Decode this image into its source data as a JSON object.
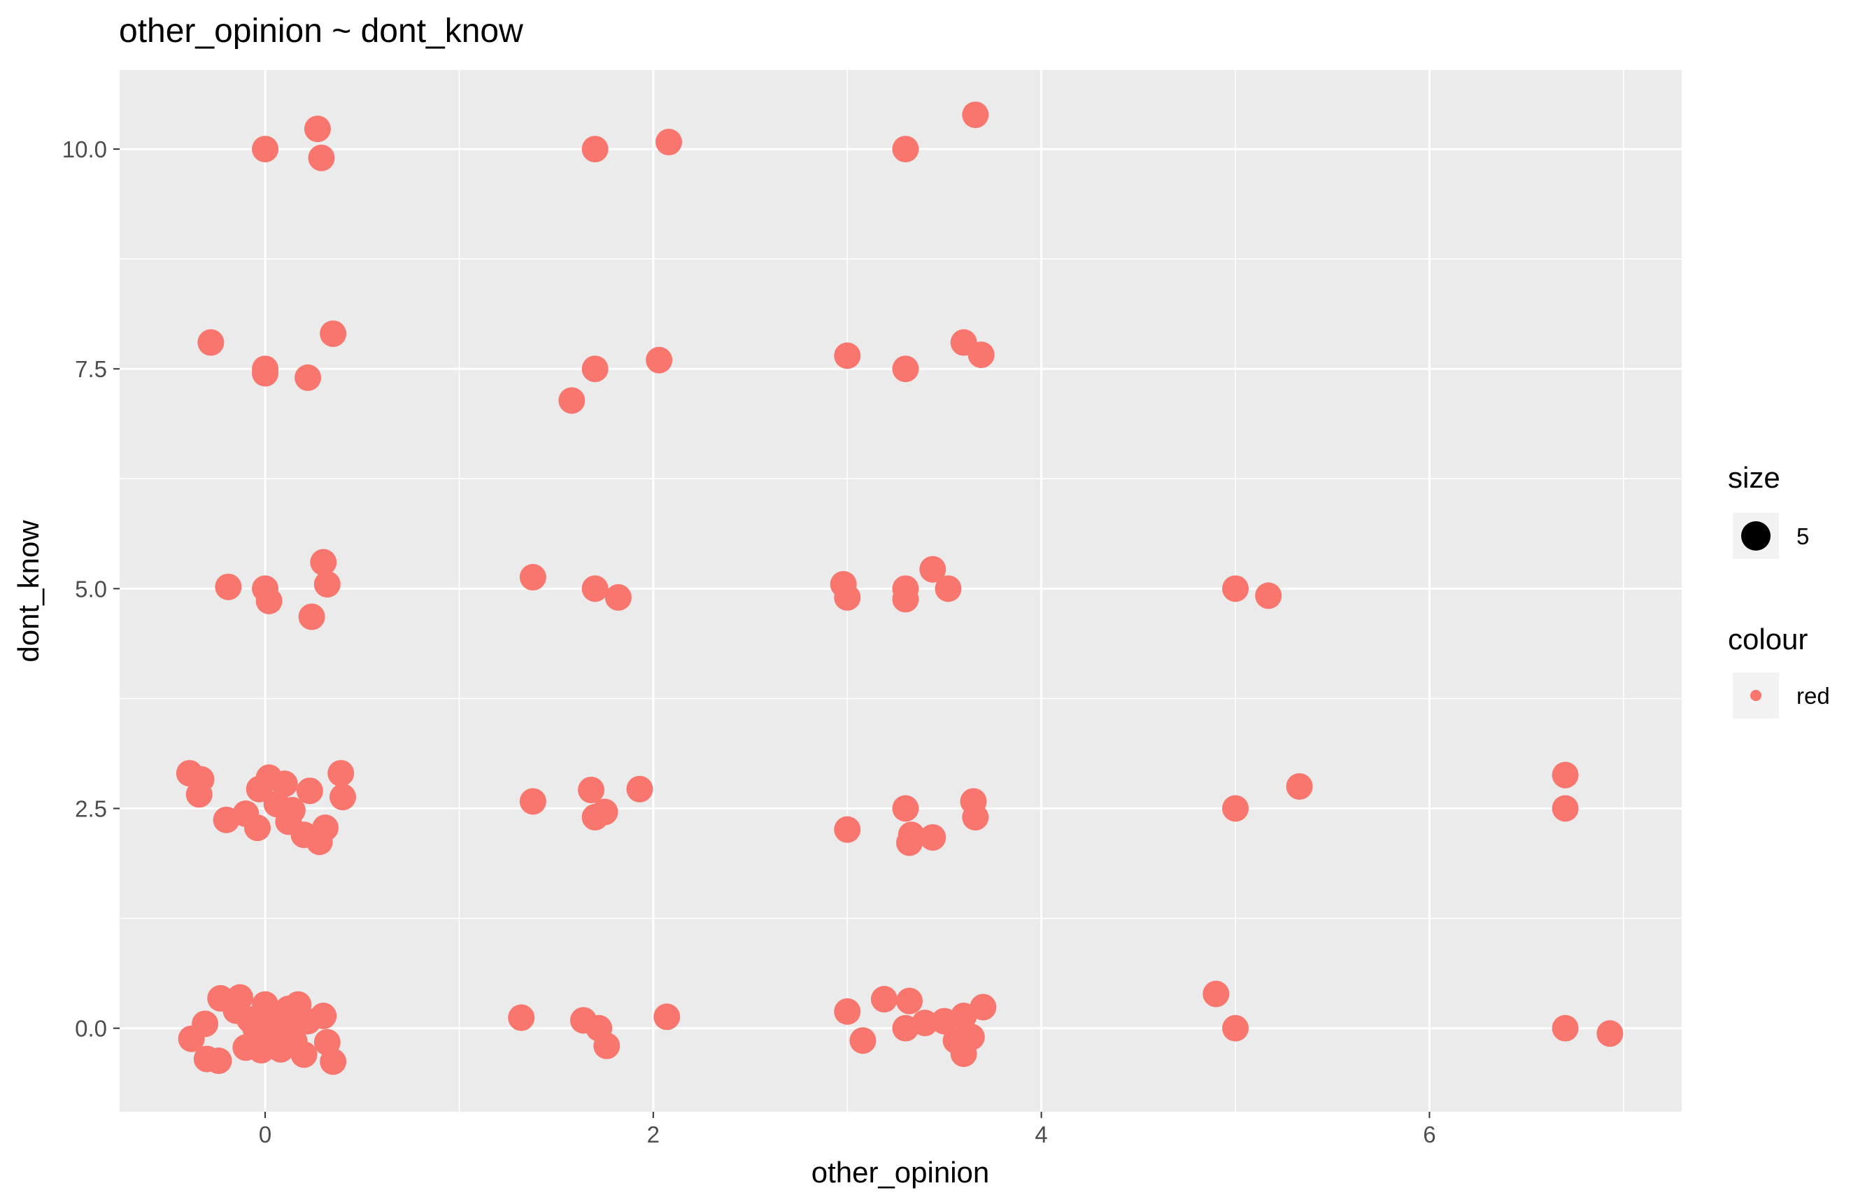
{
  "chart_data": {
    "type": "scatter",
    "title": "other_opinion ~ dont_know",
    "xlabel": "other_opinion",
    "ylabel": "dont_know",
    "xlim": [
      -0.75,
      7.3
    ],
    "ylim": [
      -0.95,
      10.9
    ],
    "x_ticks": [
      0,
      2,
      4,
      6
    ],
    "x_tick_labels": [
      "0",
      "2",
      "4",
      "6"
    ],
    "y_ticks": [
      0,
      2.5,
      5,
      7.5,
      10
    ],
    "y_tick_labels": [
      "0.0",
      "2.5",
      "5.0",
      "7.5",
      "10.0"
    ],
    "grid": true,
    "point_color": "#F8766D",
    "panel_background": "#EBEBEB",
    "legend": {
      "placement": "right",
      "groups": [
        {
          "title": "size",
          "label": "5",
          "key_color": "#000000"
        },
        {
          "title": "colour",
          "label": "red",
          "key_color": "#F8766D"
        }
      ]
    },
    "series": [
      {
        "points": [
          [
            0.0,
            10.0
          ],
          [
            0.27,
            10.23
          ],
          [
            0.29,
            9.9
          ],
          [
            1.7,
            10.0
          ],
          [
            2.08,
            10.08
          ],
          [
            3.3,
            10.0
          ],
          [
            3.66,
            10.39
          ],
          [
            -0.28,
            7.8
          ],
          [
            0.35,
            7.9
          ],
          [
            0.0,
            7.5
          ],
          [
            0.0,
            7.45
          ],
          [
            0.22,
            7.4
          ],
          [
            1.58,
            7.14
          ],
          [
            1.7,
            7.5
          ],
          [
            2.03,
            7.6
          ],
          [
            3.0,
            7.65
          ],
          [
            3.3,
            7.5
          ],
          [
            3.6,
            7.8
          ],
          [
            3.69,
            7.66
          ],
          [
            -0.19,
            5.02
          ],
          [
            0.0,
            5.0
          ],
          [
            0.02,
            4.86
          ],
          [
            0.24,
            4.68
          ],
          [
            0.3,
            5.3
          ],
          [
            0.32,
            5.05
          ],
          [
            1.38,
            5.13
          ],
          [
            1.7,
            5.0
          ],
          [
            1.82,
            4.9
          ],
          [
            2.98,
            5.05
          ],
          [
            3.0,
            4.9
          ],
          [
            3.3,
            5.0
          ],
          [
            3.3,
            4.88
          ],
          [
            3.44,
            5.22
          ],
          [
            3.52,
            5.0
          ],
          [
            5.0,
            5.0
          ],
          [
            5.17,
            4.92
          ],
          [
            -0.39,
            2.9
          ],
          [
            -0.33,
            2.83
          ],
          [
            -0.34,
            2.66
          ],
          [
            -0.2,
            2.37
          ],
          [
            -0.1,
            2.44
          ],
          [
            -0.04,
            2.28
          ],
          [
            -0.03,
            2.72
          ],
          [
            0.02,
            2.85
          ],
          [
            0.1,
            2.78
          ],
          [
            0.06,
            2.55
          ],
          [
            0.14,
            2.48
          ],
          [
            0.2,
            2.2
          ],
          [
            0.23,
            2.7
          ],
          [
            0.28,
            2.12
          ],
          [
            0.31,
            2.28
          ],
          [
            0.39,
            2.9
          ],
          [
            0.4,
            2.63
          ],
          [
            0.12,
            2.35
          ],
          [
            1.38,
            2.58
          ],
          [
            1.68,
            2.71
          ],
          [
            1.7,
            2.4
          ],
          [
            1.75,
            2.46
          ],
          [
            1.93,
            2.72
          ],
          [
            3.0,
            2.26
          ],
          [
            3.3,
            2.5
          ],
          [
            3.33,
            2.2
          ],
          [
            3.32,
            2.11
          ],
          [
            3.44,
            2.17
          ],
          [
            3.65,
            2.58
          ],
          [
            3.66,
            2.4
          ],
          [
            5.0,
            2.5
          ],
          [
            5.33,
            2.75
          ],
          [
            6.7,
            2.88
          ],
          [
            6.7,
            2.5
          ],
          [
            -0.38,
            -0.12
          ],
          [
            -0.31,
            0.05
          ],
          [
            -0.3,
            -0.35
          ],
          [
            -0.24,
            -0.37
          ],
          [
            -0.23,
            0.34
          ],
          [
            -0.15,
            0.2
          ],
          [
            -0.13,
            0.35
          ],
          [
            -0.1,
            -0.22
          ],
          [
            -0.05,
            0.0
          ],
          [
            -0.02,
            -0.25
          ],
          [
            0.0,
            0.27
          ],
          [
            0.02,
            -0.05
          ],
          [
            0.05,
            0.12
          ],
          [
            0.08,
            -0.24
          ],
          [
            0.1,
            0.02
          ],
          [
            0.12,
            0.22
          ],
          [
            0.15,
            -0.15
          ],
          [
            0.17,
            0.27
          ],
          [
            0.2,
            -0.3
          ],
          [
            0.22,
            0.08
          ],
          [
            0.3,
            0.14
          ],
          [
            0.32,
            -0.16
          ],
          [
            0.35,
            -0.38
          ],
          [
            0.05,
            -0.1
          ],
          [
            -0.08,
            0.1
          ],
          [
            1.32,
            0.12
          ],
          [
            1.64,
            0.09
          ],
          [
            1.72,
            0.0
          ],
          [
            1.76,
            -0.2
          ],
          [
            2.07,
            0.13
          ],
          [
            3.0,
            0.19
          ],
          [
            3.08,
            -0.14
          ],
          [
            3.19,
            0.33
          ],
          [
            3.3,
            0.0
          ],
          [
            3.32,
            0.31
          ],
          [
            3.4,
            0.06
          ],
          [
            3.5,
            0.08
          ],
          [
            3.56,
            -0.14
          ],
          [
            3.6,
            0.14
          ],
          [
            3.6,
            -0.29
          ],
          [
            3.64,
            -0.1
          ],
          [
            3.7,
            0.24
          ],
          [
            4.9,
            0.39
          ],
          [
            5.0,
            0.0
          ],
          [
            6.7,
            0.0
          ],
          [
            6.93,
            -0.06
          ]
        ]
      }
    ]
  }
}
